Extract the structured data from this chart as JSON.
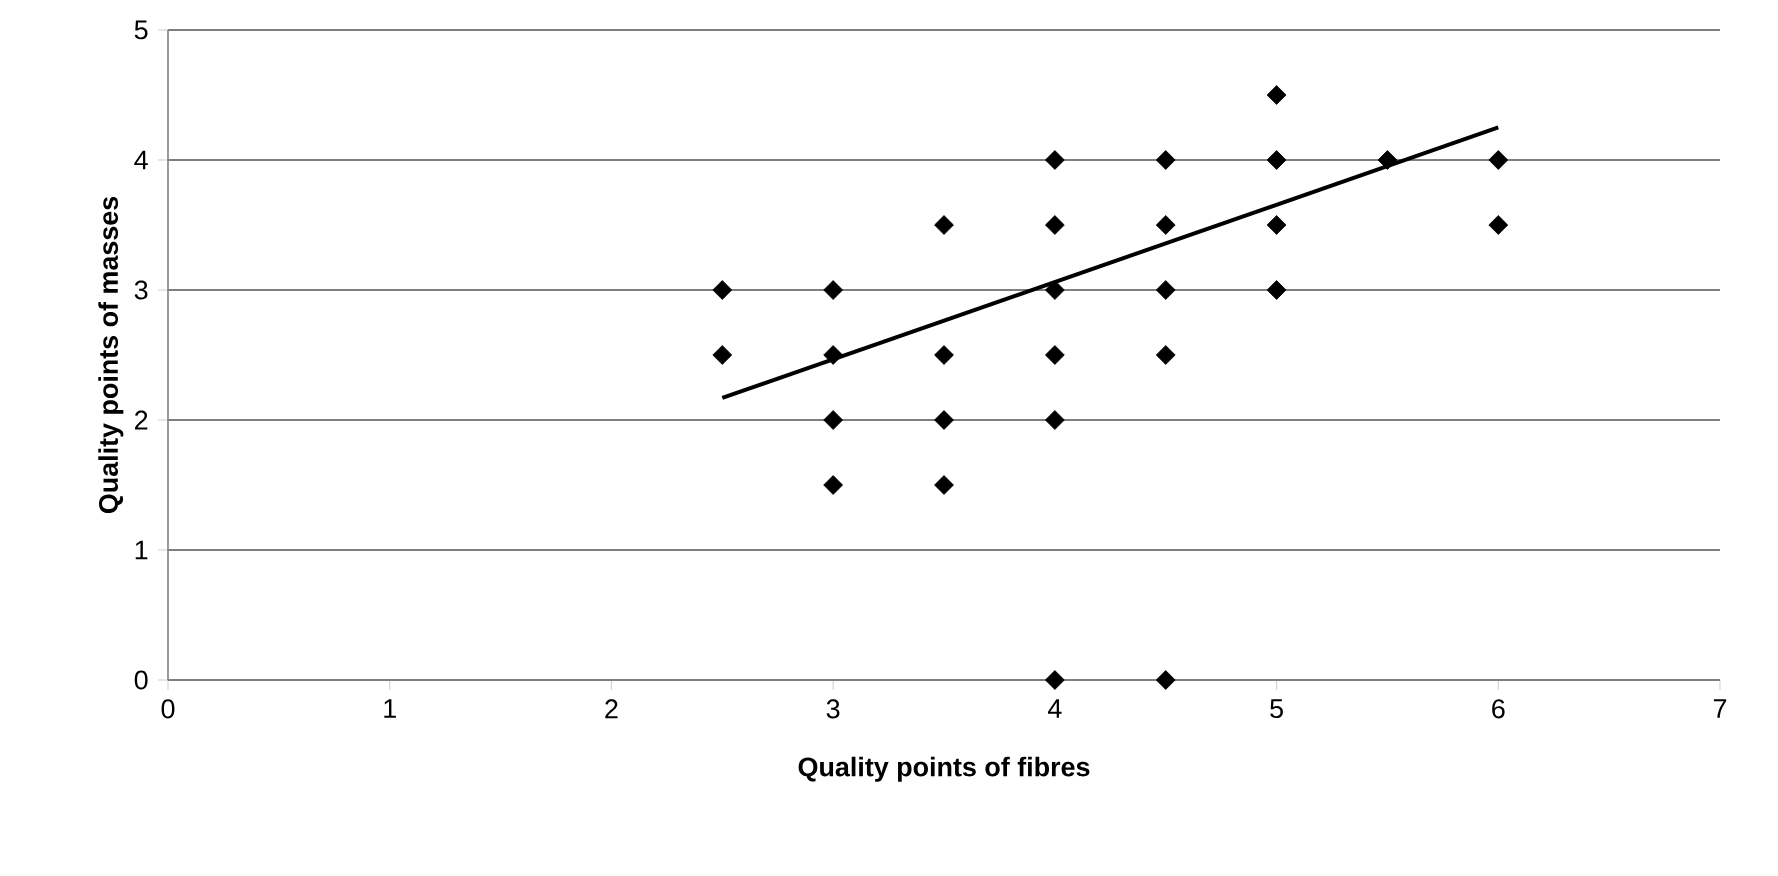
{
  "chart_data": {
    "type": "scatter",
    "xlabel": "Quality points of fibres",
    "ylabel": "Quality points of masses",
    "xlim": [
      0,
      7
    ],
    "ylim": [
      0,
      5
    ],
    "xticks": [
      0,
      1,
      2,
      3,
      4,
      5,
      6,
      7
    ],
    "yticks": [
      0,
      1,
      2,
      3,
      4,
      5
    ],
    "grid": "y",
    "marker": "diamond",
    "series": [
      {
        "color": "#000000",
        "x": [
          2.5,
          2.5,
          3,
          3,
          3,
          3,
          3.5,
          3.5,
          3.5,
          3.5,
          4,
          4,
          4,
          4,
          4,
          4,
          4.5,
          4.5,
          4.5,
          4.5,
          4.5,
          5,
          5,
          5,
          5,
          5.5,
          6,
          6
        ],
        "values": [
          3,
          2.5,
          3,
          2.5,
          2,
          1.5,
          3.5,
          2.5,
          2,
          1.5,
          4,
          3.5,
          3,
          2.5,
          2,
          0,
          4,
          3.5,
          3,
          2.5,
          0,
          4.5,
          4,
          3.5,
          3,
          4,
          4,
          3.5
        ]
      },
      {
        "type": "line",
        "color": "#000000",
        "marker": "none",
        "x": [
          2.5,
          6
        ],
        "values": [
          2.17,
          4.25
        ]
      }
    ]
  }
}
